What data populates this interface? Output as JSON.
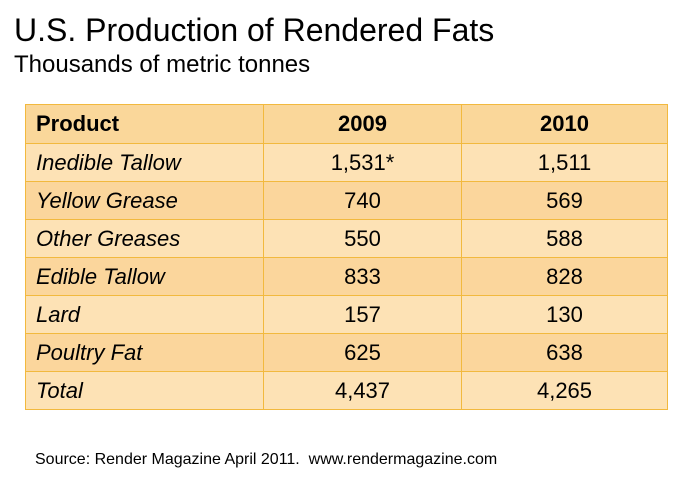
{
  "title": "U.S. Production of Rendered Fats",
  "subtitle": "Thousands of metric tonnes",
  "source": "Source: Render Magazine April 2011.  www.rendermagazine.com",
  "colors": {
    "header_fill": "#fad79a",
    "row_fill_light": "#fde2b5",
    "row_fill_dark": "#fbd69c",
    "border": "#f2b93e"
  },
  "chart_data": {
    "type": "table",
    "title": "U.S. Production of Rendered Fats",
    "subtitle": "Thousands of metric tonnes",
    "columns": [
      "Product",
      "2009",
      "2010"
    ],
    "rows": [
      [
        "Inedible Tallow",
        "1,531*",
        "1,511"
      ],
      [
        "Yellow Grease",
        "740",
        "569"
      ],
      [
        "Other Greases",
        "550",
        "588"
      ],
      [
        "Edible Tallow",
        "833",
        "828"
      ],
      [
        "Lard",
        "157",
        "130"
      ],
      [
        "Poultry Fat",
        "625",
        "638"
      ],
      [
        "Total",
        "4,437",
        "4,265"
      ]
    ]
  }
}
